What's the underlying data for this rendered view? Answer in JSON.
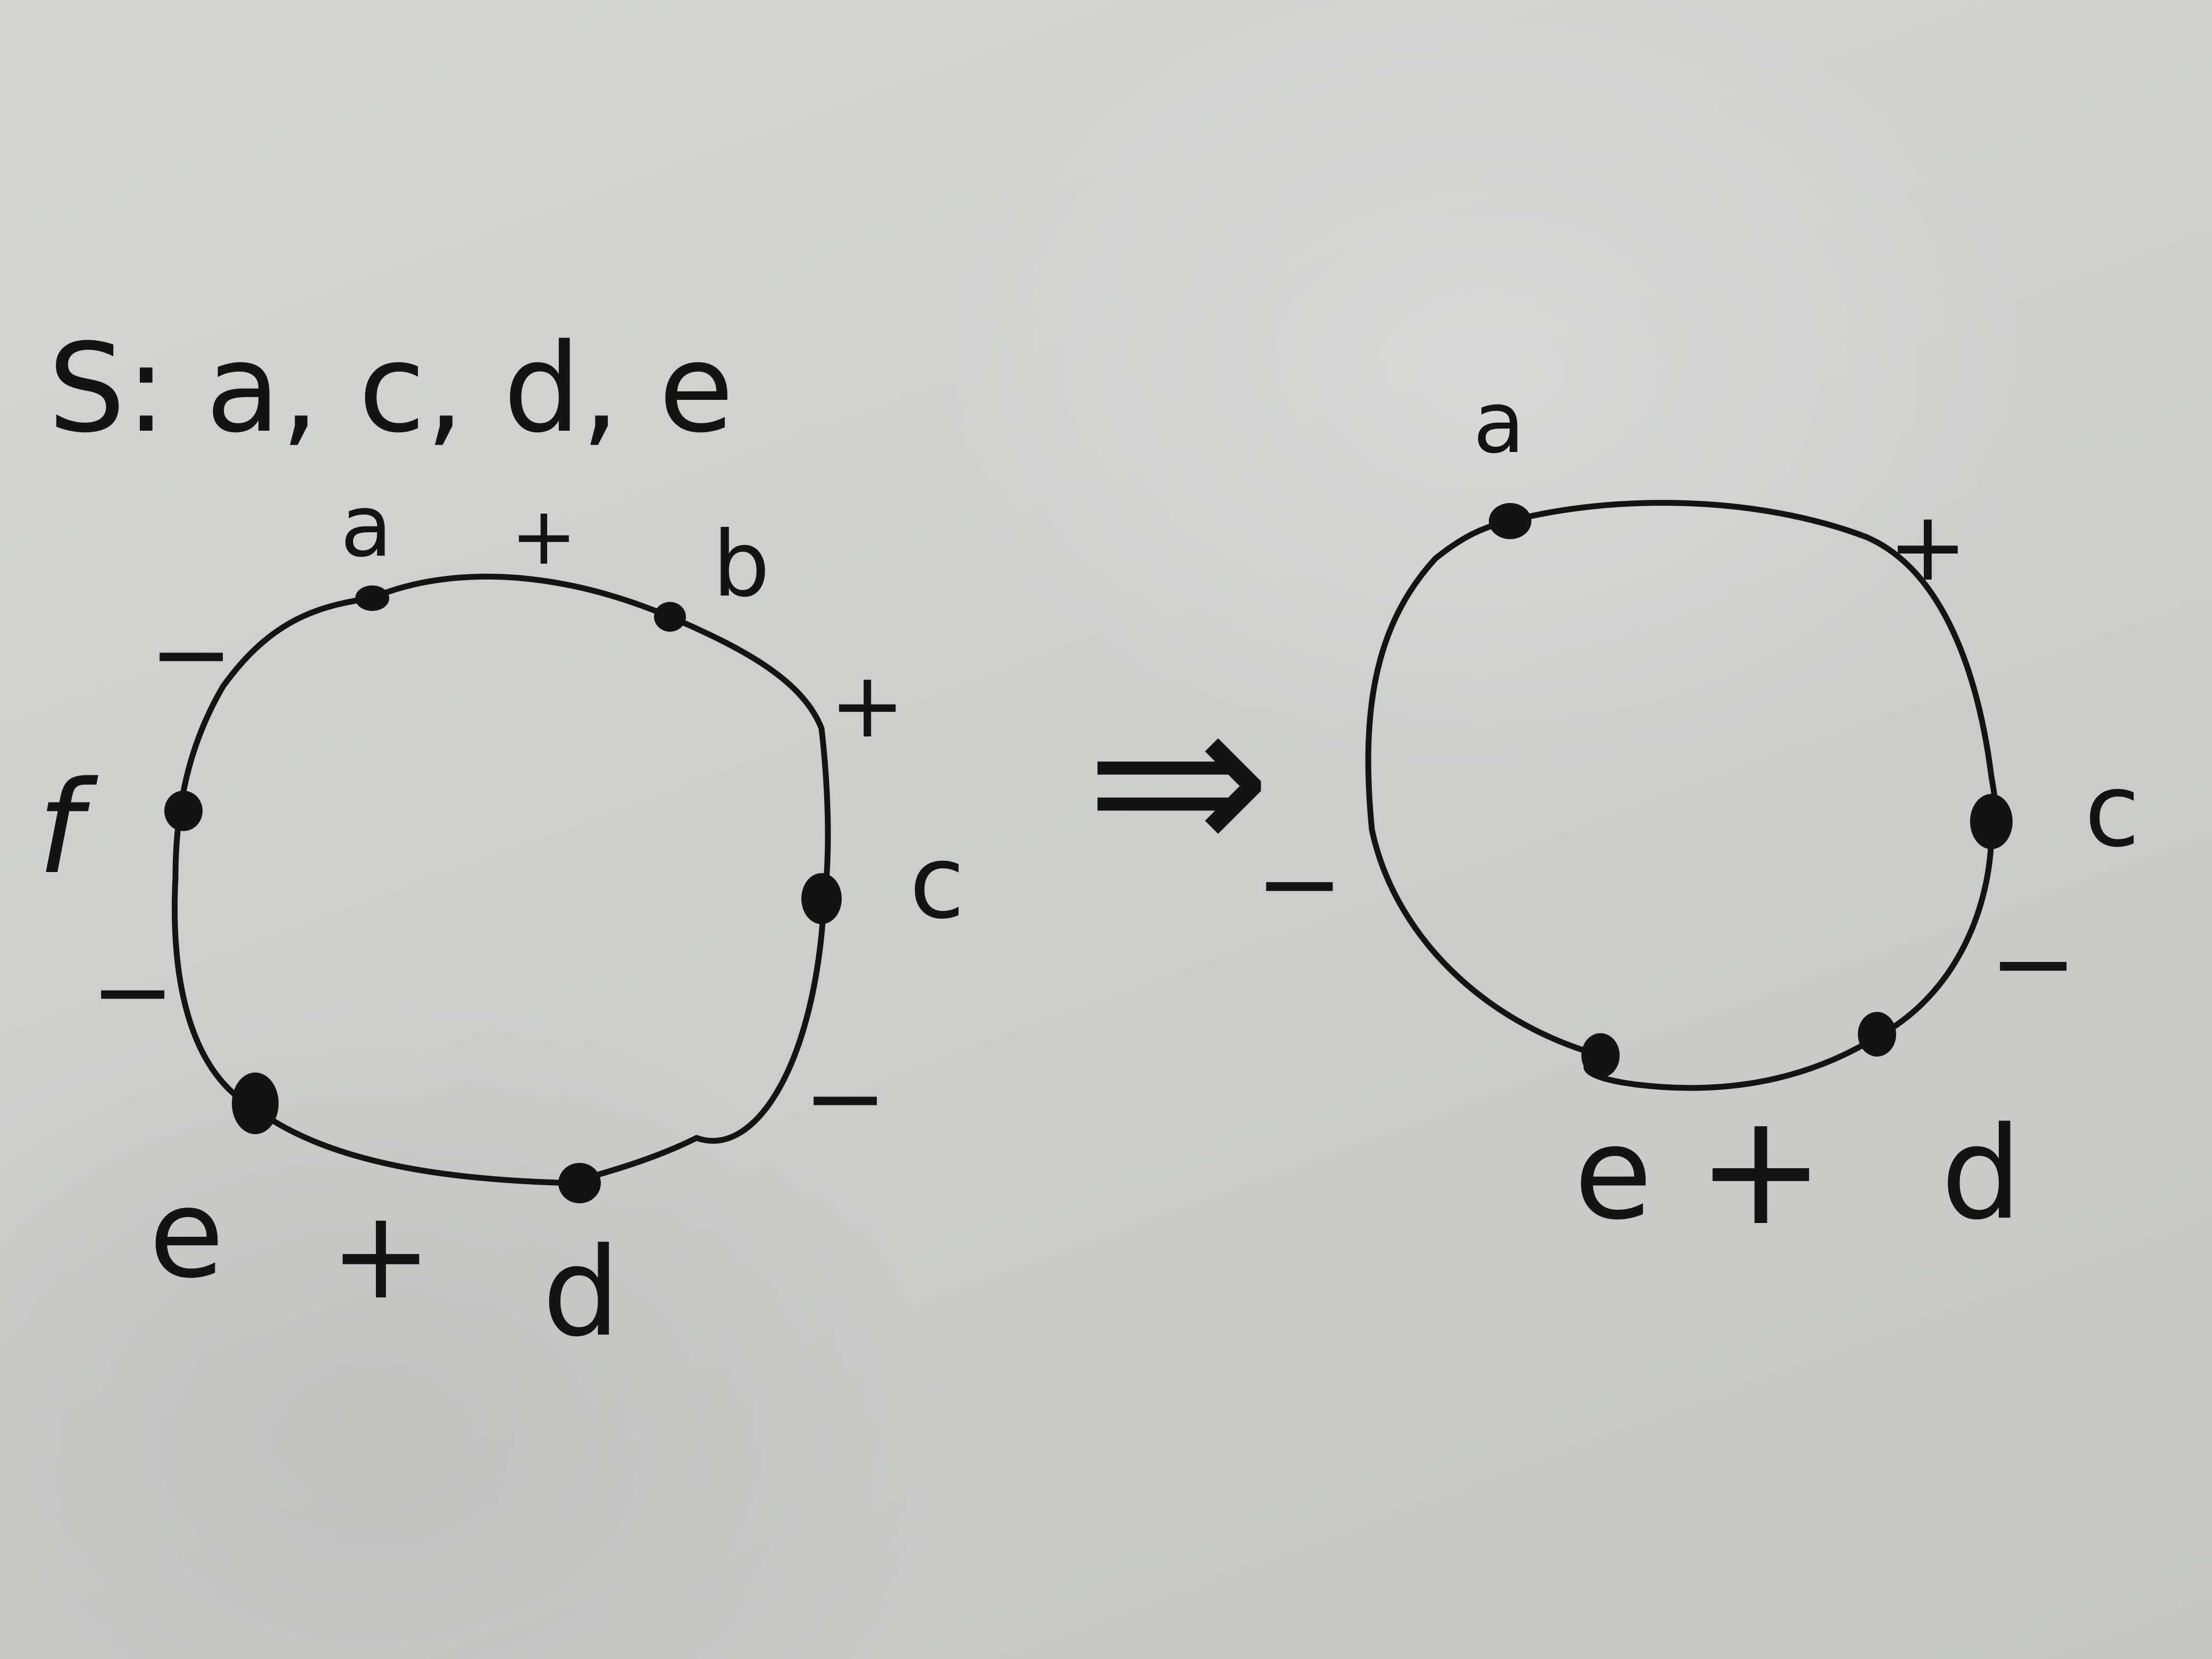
{
  "header": {
    "set_label": "S: a, c, d, e"
  },
  "left_cycle": {
    "vertices": [
      "a",
      "b",
      "c",
      "d",
      "e",
      "f"
    ],
    "signs": {
      "a-b": "+",
      "b-c": "+",
      "c-d": "−",
      "d-e": "+",
      "e-f": "−",
      "f-a": "−"
    }
  },
  "arrow": {
    "symbol": "⇒"
  },
  "right_cycle": {
    "vertices": [
      "a",
      "c",
      "d",
      "e"
    ],
    "signs": {
      "a-c": "+",
      "c-d": "−",
      "d-e": "+",
      "e-a": "−"
    }
  }
}
